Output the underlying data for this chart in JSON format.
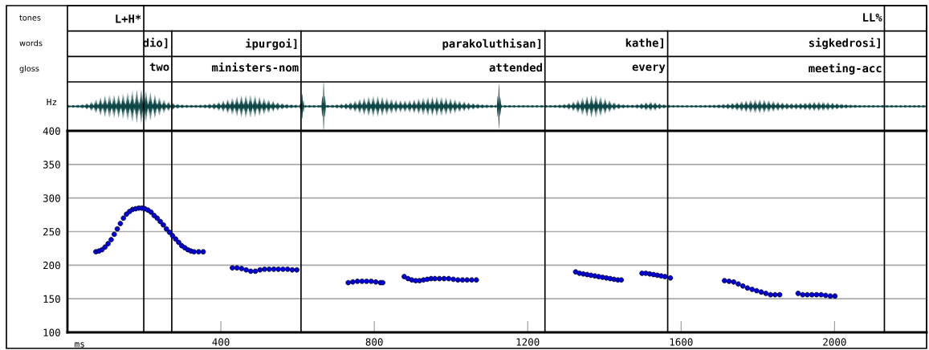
{
  "chart_data": {
    "type": "scatter",
    "xlabel": "ms",
    "ylabel": "Hz",
    "xlim": [
      0,
      2240
    ],
    "xticks": [
      400,
      800,
      1200,
      1600,
      2000
    ],
    "ylim": [
      100,
      400
    ],
    "yticks": [
      100,
      150,
      200,
      250,
      300,
      350,
      400
    ],
    "grid": "y",
    "legend": false,
    "marker": "circle",
    "series": [
      {
        "color": "#0000e0",
        "x": [
          74,
          82,
          90,
          98,
          106,
          114,
          122,
          130,
          138,
          146,
          154,
          162,
          170,
          178,
          186,
          194,
          202,
          210,
          218,
          226,
          234,
          242,
          250,
          258,
          266,
          274,
          282,
          290,
          298,
          306,
          314,
          322,
          330,
          342,
          354,
          430,
          442,
          454,
          466,
          478,
          490,
          502,
          514,
          526,
          538,
          550,
          562,
          574,
          586,
          598,
          732,
          744,
          756,
          768,
          780,
          792,
          804,
          816,
          822,
          878,
          888,
          898,
          908,
          918,
          928,
          938,
          948,
          958,
          970,
          982,
          994,
          1006,
          1018,
          1030,
          1042,
          1054,
          1066,
          1325,
          1335,
          1345,
          1355,
          1365,
          1375,
          1385,
          1395,
          1405,
          1415,
          1425,
          1435,
          1444,
          1498,
          1508,
          1518,
          1528,
          1538,
          1548,
          1558,
          1572,
          1713,
          1725,
          1737,
          1749,
          1761,
          1773,
          1785,
          1797,
          1809,
          1821,
          1833,
          1845,
          1857,
          1905,
          1917,
          1929,
          1941,
          1953,
          1965,
          1977,
          1989,
          2001
        ],
        "values": [
          220,
          221,
          223,
          227,
          232,
          238,
          246,
          254,
          262,
          270,
          276,
          280,
          283,
          284,
          285,
          285,
          284,
          282,
          279,
          274,
          270,
          265,
          260,
          254,
          249,
          244,
          239,
          234,
          229,
          226,
          223,
          221,
          220,
          220,
          220,
          196,
          196,
          195,
          193,
          191,
          191,
          193,
          194,
          194,
          194,
          194,
          194,
          194,
          193,
          193,
          174,
          175,
          176,
          176,
          176,
          176,
          175,
          174,
          174,
          183,
          180,
          178,
          177,
          177,
          178,
          179,
          180,
          180,
          180,
          180,
          180,
          179,
          178,
          178,
          178,
          178,
          178,
          190,
          188,
          187,
          186,
          185,
          184,
          183,
          182,
          181,
          180,
          179,
          178,
          178,
          188,
          188,
          187,
          186,
          185,
          184,
          183,
          181,
          177,
          176,
          175,
          172,
          169,
          166,
          164,
          162,
          160,
          158,
          156,
          156,
          156,
          158,
          156,
          156,
          156,
          156,
          156,
          155,
          154,
          154
        ]
      }
    ],
    "ref_lines": [
      {
        "axis": "x",
        "value": 199,
        "color": "#000000",
        "label": "L+H*\n\n"
      },
      {
        "axis": "x",
        "value": 272,
        "color": "#000000",
        "label": "\ndio]\ntwo"
      },
      {
        "axis": "x",
        "value": 609,
        "color": "#000000",
        "label": "\nipurgoi]\nministers-nom"
      },
      {
        "axis": "x",
        "value": 1245,
        "color": "#000000",
        "label": "\nparakoluthisan]\nattended"
      },
      {
        "axis": "x",
        "value": 1565,
        "color": "#000000",
        "label": "\nkathe]\nevery"
      },
      {
        "axis": "x",
        "value": 2130,
        "color": "#000000",
        "label": "LL%\nsigkedrosi]\nmeeting-acc"
      }
    ],
    "annotations": [
      "tones",
      "words",
      "gloss"
    ]
  }
}
